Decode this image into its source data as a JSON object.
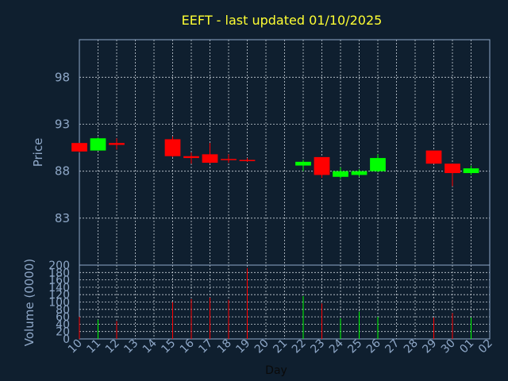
{
  "chart_data": {
    "type": "candlestick",
    "title": "EEFT - last updated 01/10/2025",
    "xlabel": "Day",
    "ylabel": "Price",
    "volume_label": "Volume (0000)",
    "ylim": [
      78,
      102
    ],
    "yticks": [
      83,
      88,
      93,
      98
    ],
    "volume_ylim": [
      0,
      200
    ],
    "volume_ticks": [
      0,
      20,
      40,
      60,
      80,
      100,
      120,
      140,
      160,
      180,
      200
    ],
    "grid": true,
    "up_color": "#00ff00",
    "down_color": "#ff0000",
    "days": [
      "10",
      "11",
      "12",
      "13",
      "14",
      "15",
      "16",
      "17",
      "18",
      "19",
      "20",
      "21",
      "22",
      "23",
      "24",
      "25",
      "26",
      "27",
      "28",
      "29",
      "30",
      "01",
      "02"
    ],
    "candles": [
      {
        "day": "10",
        "open": 91.0,
        "high": 91.0,
        "low": 90.0,
        "close": 90.1,
        "volume": 60
      },
      {
        "day": "11",
        "open": 90.2,
        "high": 91.6,
        "low": 90.2,
        "close": 91.5,
        "volume": 52
      },
      {
        "day": "12",
        "open": 91.0,
        "high": 91.5,
        "low": 90.3,
        "close": 90.8,
        "volume": 48
      },
      {
        "day": "15",
        "open": 91.4,
        "high": 91.7,
        "low": 89.5,
        "close": 89.6,
        "volume": 100
      },
      {
        "day": "16",
        "open": 89.6,
        "high": 90.0,
        "low": 88.8,
        "close": 89.4,
        "volume": 108
      },
      {
        "day": "17",
        "open": 89.8,
        "high": 91.0,
        "low": 88.8,
        "close": 88.9,
        "volume": 112
      },
      {
        "day": "18",
        "open": 89.3,
        "high": 89.8,
        "low": 88.9,
        "close": 89.2,
        "volume": 106
      },
      {
        "day": "19",
        "open": 89.2,
        "high": 89.4,
        "low": 89.0,
        "close": 89.1,
        "volume": 192
      },
      {
        "day": "22",
        "open": 88.6,
        "high": 89.2,
        "low": 88.0,
        "close": 89.0,
        "volume": 116
      },
      {
        "day": "23",
        "open": 89.5,
        "high": 89.5,
        "low": 87.3,
        "close": 87.6,
        "volume": 96
      },
      {
        "day": "24",
        "open": 87.4,
        "high": 88.4,
        "low": 87.2,
        "close": 88.0,
        "volume": 56
      },
      {
        "day": "25",
        "open": 87.6,
        "high": 88.2,
        "low": 87.4,
        "close": 88.0,
        "volume": 74
      },
      {
        "day": "26",
        "open": 88.0,
        "high": 89.8,
        "low": 87.9,
        "close": 89.4,
        "volume": 60
      },
      {
        "day": "29",
        "open": 90.2,
        "high": 90.2,
        "low": 88.8,
        "close": 88.8,
        "volume": 58
      },
      {
        "day": "30",
        "open": 88.8,
        "high": 88.8,
        "low": 86.4,
        "close": 87.8,
        "volume": 70
      },
      {
        "day": "01",
        "open": 87.8,
        "high": 88.6,
        "low": 87.6,
        "close": 88.3,
        "volume": 58
      }
    ]
  }
}
